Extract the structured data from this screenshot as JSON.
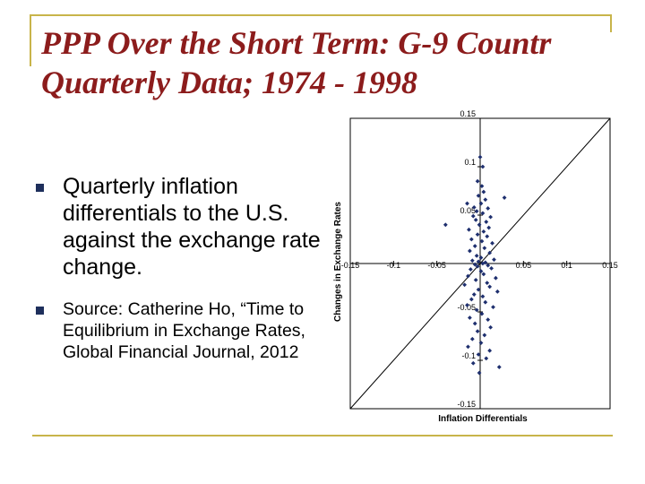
{
  "slide": {
    "title_line1": "PPP Over the Short Term: G-9 Countr",
    "title_line2": "Quarterly Data; 1974 - 1998",
    "bullets": [
      "Quarterly inflation differentials to the U.S. against the exchange rate change.",
      "Source:  Catherine Ho, “Time to Equilibrium in Exchange Rates, Global Financial Journal, 2012"
    ],
    "colors": {
      "title": "#8c1c1c",
      "accent_rule": "#c8b44a",
      "bullet_mark": "#1e2f5c",
      "points": "#1e2f6e"
    }
  },
  "chart_data": {
    "type": "scatter",
    "title": "",
    "xlabel": "Inflation Differentials",
    "ylabel": "Changes in Exchange Rates",
    "xlim": [
      -0.15,
      0.15
    ],
    "ylim": [
      -0.15,
      0.15
    ],
    "xticks": [
      "-0.15",
      "-0.1",
      "-0.05",
      "0",
      "0.05",
      "0.1",
      "0.15"
    ],
    "yticks": [
      "0.15",
      "0.1",
      "0.05",
      "0",
      "-0.05",
      "-0.1",
      "-0.15"
    ],
    "reference_line": "45-degree line y = x",
    "series": [
      {
        "points": [
          [
            0.0,
            0.11
          ],
          [
            0.003,
            0.1
          ],
          [
            -0.003,
            0.085
          ],
          [
            0.002,
            0.08
          ],
          [
            0.004,
            0.074
          ],
          [
            -0.002,
            0.07
          ],
          [
            0.006,
            0.066
          ],
          [
            0.028,
            0.068
          ],
          [
            -0.015,
            0.062
          ],
          [
            0.001,
            0.062
          ],
          [
            -0.007,
            0.058
          ],
          [
            0.009,
            0.057
          ],
          [
            -0.004,
            0.054
          ],
          [
            0.003,
            0.052
          ],
          [
            -0.008,
            0.049
          ],
          [
            0.012,
            0.048
          ],
          [
            -0.005,
            0.045
          ],
          [
            0.007,
            0.043
          ],
          [
            -0.04,
            0.04
          ],
          [
            -0.001,
            0.04
          ],
          [
            0.01,
            0.037
          ],
          [
            -0.013,
            0.035
          ],
          [
            0.004,
            0.033
          ],
          [
            -0.003,
            0.03
          ],
          [
            0.008,
            0.028
          ],
          [
            -0.01,
            0.025
          ],
          [
            0.002,
            0.023
          ],
          [
            0.014,
            0.021
          ],
          [
            -0.006,
            0.018
          ],
          [
            0.005,
            0.016
          ],
          [
            -0.012,
            0.013
          ],
          [
            0.011,
            0.011
          ],
          [
            -0.004,
            0.008
          ],
          [
            0.001,
            0.006
          ],
          [
            0.016,
            0.004
          ],
          [
            -0.009,
            0.003
          ],
          [
            -0.002,
            0.002
          ],
          [
            0.006,
            0.001
          ],
          [
            0.003,
            0.0
          ],
          [
            -0.006,
            -0.001
          ],
          [
            0.009,
            -0.002
          ],
          [
            -0.003,
            -0.003
          ],
          [
            0.013,
            -0.005
          ],
          [
            -0.011,
            -0.006
          ],
          [
            0.001,
            -0.008
          ],
          [
            0.004,
            -0.011
          ],
          [
            -0.014,
            -0.013
          ],
          [
            0.018,
            -0.015
          ],
          [
            -0.005,
            -0.017
          ],
          [
            0.008,
            -0.02
          ],
          [
            -0.018,
            -0.022
          ],
          [
            0.011,
            -0.024
          ],
          [
            -0.002,
            -0.027
          ],
          [
            0.02,
            -0.029
          ],
          [
            -0.007,
            -0.032
          ],
          [
            0.003,
            -0.034
          ],
          [
            -0.01,
            -0.037
          ],
          [
            0.006,
            -0.04
          ],
          [
            -0.015,
            -0.043
          ],
          [
            0.015,
            -0.045
          ],
          [
            -0.004,
            -0.048
          ],
          [
            0.002,
            -0.052
          ],
          [
            -0.012,
            -0.056
          ],
          [
            0.009,
            -0.058
          ],
          [
            -0.006,
            -0.062
          ],
          [
            0.012,
            -0.066
          ],
          [
            -0.003,
            -0.07
          ],
          [
            0.005,
            -0.074
          ],
          [
            -0.009,
            -0.078
          ],
          [
            0.001,
            -0.082
          ],
          [
            -0.014,
            -0.086
          ],
          [
            0.011,
            -0.09
          ],
          [
            -0.002,
            -0.094
          ],
          [
            0.007,
            -0.098
          ],
          [
            -0.008,
            -0.103
          ],
          [
            0.022,
            -0.107
          ],
          [
            -0.001,
            -0.113
          ]
        ]
      }
    ]
  }
}
